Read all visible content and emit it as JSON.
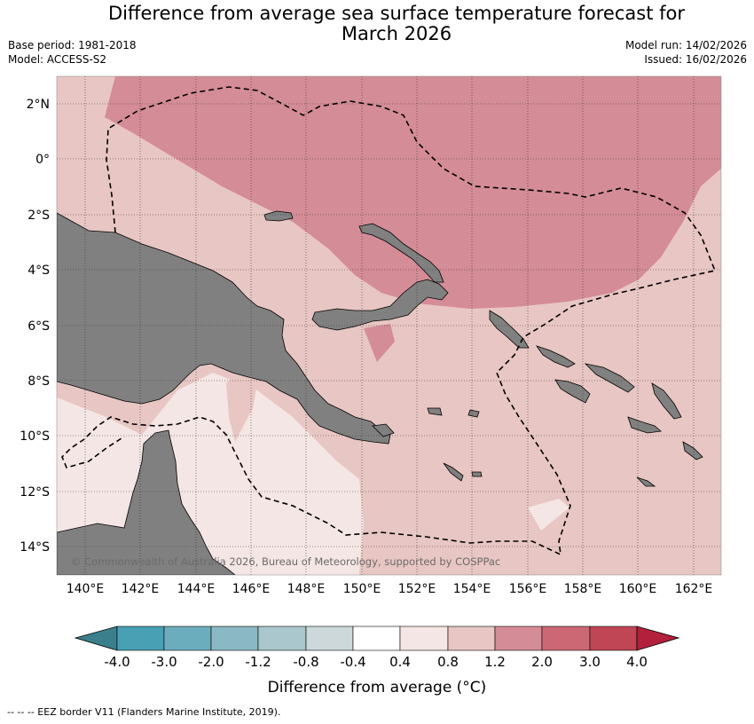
{
  "header": {
    "title_line1": "Difference from average sea surface temperature forecast for",
    "title_line2": "March 2026",
    "base_period": "Base period: 1981-2018",
    "model": "Model: ACCESS-S2",
    "model_run": "Model run: 14/02/2026",
    "issued": "Issued: 16/02/2026"
  },
  "map": {
    "region": "Papua New Guinea and western Pacific",
    "longitude_labels": [
      "140°E",
      "142°E",
      "144°E",
      "146°E",
      "148°E",
      "150°E",
      "152°E",
      "154°E",
      "156°E",
      "158°E",
      "160°E",
      "162°E"
    ],
    "latitude_labels": [
      "2°N",
      "0°",
      "2°S",
      "4°S",
      "6°S",
      "8°S",
      "10°S",
      "12°S",
      "14°S"
    ],
    "copyright": "© Commonwealth of Australia 2026, Bureau of Meteorology, supported by COSPPac",
    "land_color": "#808080",
    "contour_colors": {
      "band_1_2_to_2_0": "#d48c96",
      "band_0_8_to_1_2": "#e8c6c3",
      "band_0_4_to_0_8": "#f4e6e4",
      "band_minus0_4_to_0_4": "#ffffff"
    }
  },
  "colorbar": {
    "tick_labels": [
      "-4.0",
      "-3.0",
      "-2.0",
      "-1.2",
      "-0.8",
      "-0.4",
      "0.4",
      "0.8",
      "1.2",
      "2.0",
      "3.0",
      "4.0"
    ],
    "colors": [
      "#3b7f8c",
      "#47a0b3",
      "#6cadbd",
      "#8ab8c4",
      "#a9c7cc",
      "#ccd8da",
      "#ffffff",
      "#f4e6e4",
      "#e8c6c3",
      "#d48c96",
      "#cc6874",
      "#c04655",
      "#b2203c"
    ],
    "label": "Difference from average (°C)"
  },
  "footer": {
    "legend_text": "-- -- -- EEZ border V11 (Flanders Marine Institute, 2019)."
  }
}
